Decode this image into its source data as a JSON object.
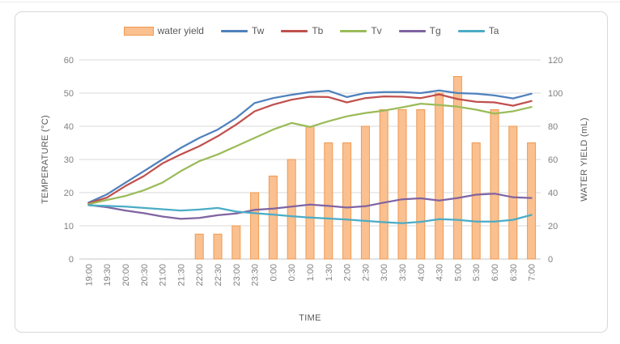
{
  "chart_data": {
    "type": "combo",
    "title": "",
    "xlabel": "TIME",
    "grid": true,
    "legend_position": "top",
    "categories": [
      "19:00",
      "19:30",
      "20:00",
      "20:30",
      "21:00",
      "21:30",
      "22:00",
      "22:30",
      "23:00",
      "23:30",
      "0:00",
      "0:30",
      "1:00",
      "1:30",
      "2:00",
      "2:30",
      "3:00",
      "3:30",
      "4:00",
      "4:30",
      "5:00",
      "5:30",
      "6:00",
      "6:30",
      "7:00"
    ],
    "y_left": {
      "title": "TEMPERATURE (°C)",
      "min": 0,
      "max": 60,
      "step": 10
    },
    "y_right": {
      "title": "WATER YIELD (mL)",
      "min": 0,
      "max": 120,
      "step": 20
    },
    "series": [
      {
        "name": "water yield",
        "type": "bar",
        "axis": "right",
        "unit": "mL",
        "color": "#f09950",
        "fill": "#fac090",
        "values": [
          null,
          null,
          null,
          null,
          null,
          null,
          15,
          15,
          20,
          40,
          50,
          60,
          80,
          70,
          70,
          80,
          90,
          90,
          90,
          100,
          110,
          70,
          90,
          80,
          70
        ]
      },
      {
        "name": "Tw",
        "type": "line",
        "axis": "left",
        "unit": "°C",
        "color": "#4f81bd",
        "values": [
          17,
          19.5,
          23,
          26.5,
          30,
          33.5,
          36.5,
          39,
          42.5,
          47,
          48.5,
          49.5,
          50.3,
          50.7,
          48.8,
          50,
          50.3,
          50.3,
          50,
          50.8,
          50,
          49.8,
          49.3,
          48.4,
          49.8
        ]
      },
      {
        "name": "Tb",
        "type": "line",
        "axis": "left",
        "unit": "°C",
        "color": "#c0504d",
        "values": [
          16.8,
          18.5,
          22,
          25,
          28.8,
          31.5,
          34,
          37,
          40.5,
          44.5,
          46.5,
          48,
          48.9,
          48.8,
          47.2,
          48.5,
          49,
          48.9,
          48.5,
          49.6,
          48.2,
          47.4,
          47.2,
          46.2,
          47.6
        ]
      },
      {
        "name": "Tv",
        "type": "line",
        "axis": "left",
        "unit": "°C",
        "color": "#9bbb59",
        "values": [
          16.5,
          17.8,
          19,
          20.7,
          23,
          26.5,
          29.5,
          31.5,
          34,
          36.5,
          39,
          41,
          39.8,
          41.5,
          43,
          44,
          44.7,
          45.7,
          46.8,
          46.4,
          45.9,
          45,
          43.8,
          44.5,
          45.8
        ]
      },
      {
        "name": "Tg",
        "type": "line",
        "axis": "left",
        "unit": "°C",
        "color": "#8064a2",
        "values": [
          16.3,
          15.6,
          14.6,
          13.8,
          12.8,
          12.1,
          12.4,
          13.2,
          13.7,
          14.8,
          15.2,
          15.8,
          16.4,
          16,
          15.5,
          15.9,
          17,
          18,
          18.3,
          17.6,
          18.4,
          19.4,
          19.7,
          18.6,
          18.4
        ]
      },
      {
        "name": "Ta",
        "type": "line",
        "axis": "left",
        "unit": "°C",
        "color": "#4bacc6",
        "values": [
          16.2,
          16,
          15.8,
          15.4,
          15,
          14.6,
          14.9,
          15.4,
          14.3,
          13.8,
          13.4,
          12.9,
          12.5,
          12.2,
          11.9,
          11.5,
          11.1,
          10.8,
          11.2,
          12,
          11.8,
          11.3,
          11.3,
          11.8,
          13.3
        ]
      }
    ],
    "colors": {
      "gridline": "#d9d9d9",
      "axis_line": "#c6c6c6",
      "tick_label": "#7f7f7f",
      "axis_title": "#595959"
    }
  }
}
